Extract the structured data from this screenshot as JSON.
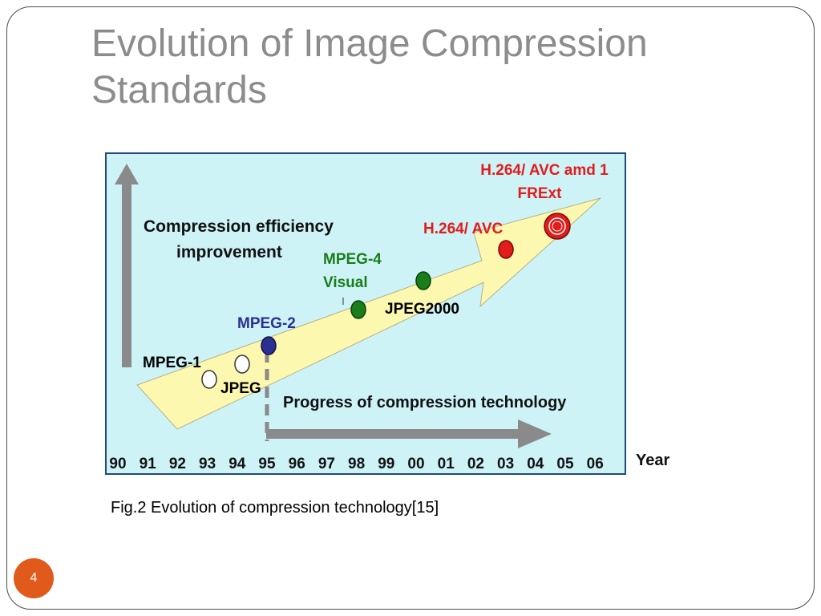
{
  "slide": {
    "title_line1": "Evolution of Image Compression",
    "title_line2": "Standards",
    "caption": "Fig.2  Evolution of compression technology[15]",
    "page_number": "4"
  },
  "diagram": {
    "colors": {
      "background": "#cdf3f7",
      "border": "#1f4b7a",
      "big_arrow_fill": "#fcf8b0",
      "gray_arrow": "#8a8a8a",
      "red": "#e21b1b",
      "green": "#1a7d1a",
      "navy": "#2b2f8f",
      "white_node": "#ffffff"
    },
    "labels": {
      "vertical_axis_line1": "Compression efficiency",
      "vertical_axis_line2": "improvement",
      "horizontal_axis": "Progress of compression technology",
      "year": "Year"
    },
    "years": [
      "90",
      "91",
      "92",
      "93",
      "94",
      "95",
      "96",
      "97",
      "98",
      "99",
      "00",
      "01",
      "02",
      "03",
      "04",
      "05",
      "06"
    ],
    "standards": [
      {
        "id": "mpeg-1",
        "label": "MPEG-1",
        "color": "#000000",
        "node": "white"
      },
      {
        "id": "jpeg",
        "label": "JPEG",
        "color": "#000000",
        "node": "white"
      },
      {
        "id": "mpeg-2",
        "label": "MPEG-2",
        "color": "#2b2f8f",
        "node": "navy"
      },
      {
        "id": "mpeg-4",
        "label_line1": "MPEG-4",
        "label_line2": "Visual",
        "color": "#1a7d1a",
        "node": "green"
      },
      {
        "id": "jpeg2000",
        "label": "JPEG2000",
        "color": "#000000",
        "node": "green"
      },
      {
        "id": "h264-avc",
        "label": "H.264/ AVC",
        "color": "#e21b1b",
        "node": "red"
      },
      {
        "id": "h264-frext",
        "label_line1": "H.264/ AVC amd 1",
        "label_line2": "FRExt",
        "color": "#e21b1b",
        "node": "red-ring"
      }
    ]
  }
}
